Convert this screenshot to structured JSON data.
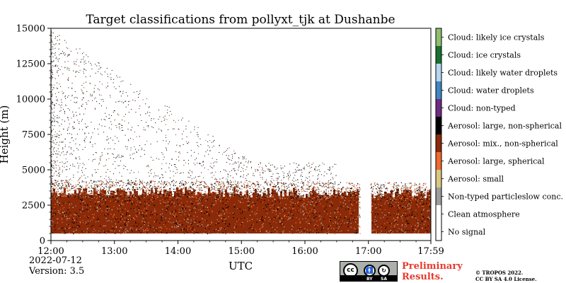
{
  "chart_data": {
    "type": "heatmap",
    "title": "Target classifications from pollyxt_tjk at Dushanbe",
    "xlabel": "UTC",
    "ylabel": "Height (m)",
    "x_tick_labels": [
      "12:00",
      "13:00",
      "14:00",
      "15:00",
      "16:00",
      "17:00",
      "17:59"
    ],
    "x_range": [
      "12:00",
      "17:59"
    ],
    "y_ticks": [
      0,
      2500,
      5000,
      7500,
      10000,
      12500,
      15000
    ],
    "ylim": [
      0,
      15000
    ],
    "classes": [
      {
        "label": "No signal",
        "color": "#ffffff"
      },
      {
        "label": "Clean atmosphere",
        "color": "#ffffff"
      },
      {
        "label": "Non-typed particleslow conc.",
        "color": "#9c9c9c"
      },
      {
        "label": "Aerosol: small",
        "color": "#d9c87d"
      },
      {
        "label": "Aerosol: large, spherical",
        "color": "#ee6a2e"
      },
      {
        "label": "Aerosol: mix., non-spherical",
        "color": "#8a2a08"
      },
      {
        "label": "Aerosol: large, non-spherical",
        "color": "#000000"
      },
      {
        "label": "Cloud: non-typed",
        "color": "#6e2b82"
      },
      {
        "label": "Cloud: water droplets",
        "color": "#3f86c2"
      },
      {
        "label": "Cloud: likely water droplets",
        "color": "#b4d6f0"
      },
      {
        "label": "Cloud: ice crystals",
        "color": "#1a7030"
      },
      {
        "label": "Cloud: likely ice crystals",
        "color": "#8ebf6e"
      }
    ],
    "aerosol_layer": {
      "bottom_m": 500,
      "top_m_start": 4000,
      "top_m_end": 3800,
      "main_class": "Aerosol: mix., non-spherical"
    },
    "data_gap": [
      "16:52",
      "17:02"
    ],
    "scatter_points_above_layer": "sparse, concentrated before 15:00"
  },
  "meta": {
    "date": "2022-07-12",
    "version": "Version: 3.5"
  },
  "license_badge": {
    "cc": "cc",
    "by": "BY",
    "sa": "SA"
  },
  "preliminary": {
    "line1": "Preliminary",
    "line2": "Results."
  },
  "copyright": {
    "line1": "© TROPOS 2022.",
    "line2": "CC BY SA 4.0 License."
  }
}
